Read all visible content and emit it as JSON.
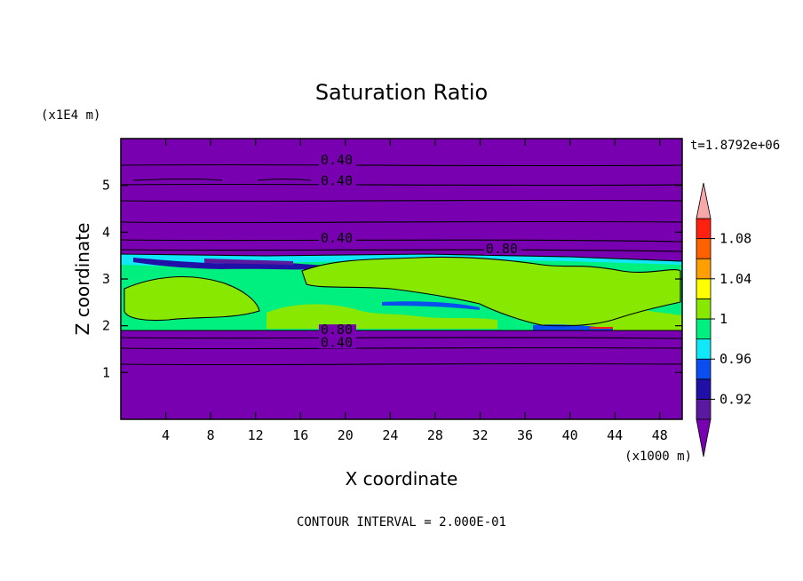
{
  "chart_data": {
    "type": "heatmap",
    "title": "Saturation Ratio",
    "xlabel": "X coordinate",
    "ylabel": "Z coordinate",
    "x_unit": "(x1000 m)",
    "y_unit": "(x1E4 m)",
    "time_label": "t=1.8792e+06",
    "footer": "CONTOUR INTERVAL = 2.000E-01",
    "xlim": [
      0,
      50
    ],
    "ylim": [
      0,
      6
    ],
    "x_ticks": [
      "4",
      "8",
      "12",
      "16",
      "20",
      "24",
      "28",
      "32",
      "36",
      "40",
      "44",
      "48"
    ],
    "x_tick_values": [
      4,
      8,
      12,
      16,
      20,
      24,
      28,
      32,
      36,
      40,
      44,
      48
    ],
    "y_ticks": [
      "1",
      "2",
      "3",
      "4",
      "5"
    ],
    "y_tick_values": [
      1,
      2,
      3,
      4,
      5
    ],
    "contour_labels": [
      {
        "text": "0.40",
        "x": 17.8,
        "y": 5.45
      },
      {
        "text": "0.40",
        "x": 17.8,
        "y": 5.0
      },
      {
        "text": "0.40",
        "x": 17.8,
        "y": 3.78
      },
      {
        "text": "0.80",
        "x": 32.5,
        "y": 3.55
      },
      {
        "text": "0.80",
        "x": 17.8,
        "y": 1.82
      },
      {
        "text": "0.40",
        "x": 17.8,
        "y": 1.55
      }
    ],
    "cloud_band": {
      "z_bottom": 1.92,
      "z_top_left": 3.52,
      "z_top_right": 3.38
    },
    "colorbar": {
      "levels": [
        0.9,
        0.92,
        0.94,
        0.96,
        0.98,
        1.0,
        1.02,
        1.04,
        1.06,
        1.08,
        1.1
      ],
      "tick_labels": [
        "0.92",
        "0.96",
        "1",
        "1.04",
        "1.08"
      ],
      "tick_values": [
        0.92,
        0.96,
        1.0,
        1.04,
        1.08
      ],
      "colors": [
        "#5a1aa0",
        "#2010a8",
        "#0a4ef0",
        "#10e8f8",
        "#00f080",
        "#88e800",
        "#ffff00",
        "#ffa000",
        "#ff6000",
        "#ff2010"
      ],
      "over_color": "#f8a8a8",
      "under_color": "#7800b0"
    }
  }
}
